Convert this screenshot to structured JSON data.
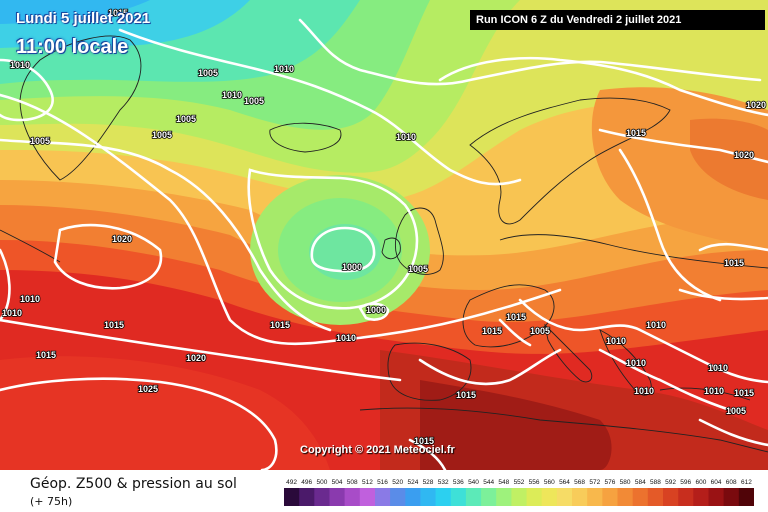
{
  "header": {
    "date": "Lundi 5 juillet 2021",
    "time": "11:00 locale",
    "run": "Run ICON 6 Z du Vendredi 2 juillet 2021"
  },
  "copyright": "Copyright © 2021 Meteociel.fr",
  "footer": {
    "title": "Géop. Z500 & pression au sol",
    "subtitle": "(+ 75h)"
  },
  "scale": {
    "values": [
      "492",
      "496",
      "500",
      "504",
      "508",
      "512",
      "516",
      "520",
      "524",
      "528",
      "532",
      "536",
      "540",
      "544",
      "548",
      "552",
      "556",
      "560",
      "564",
      "568",
      "572",
      "576",
      "580",
      "584",
      "588",
      "592",
      "596",
      "600",
      "604",
      "608",
      "612"
    ],
    "colors": [
      "#2a0a3a",
      "#4b1a6a",
      "#6a2a8f",
      "#8a3aae",
      "#a84cc8",
      "#c060dd",
      "#8a7ae6",
      "#5a8ce8",
      "#3a9ef0",
      "#30b8f2",
      "#2cd0f0",
      "#3ee0d8",
      "#5ceab8",
      "#7cf09a",
      "#9ef27c",
      "#c0f064",
      "#dcec58",
      "#eee65a",
      "#f6dc66",
      "#f8cc5a",
      "#f8b84c",
      "#f6a240",
      "#f28a36",
      "#ec722e",
      "#e45a28",
      "#d84222",
      "#c82e1e",
      "#b41e1a",
      "#9a1214",
      "#7a0a0e",
      "#500408"
    ]
  },
  "isobars": [
    {
      "v": "1015"
    },
    {
      "v": "1010"
    },
    {
      "v": "1005"
    },
    {
      "v": "1005"
    },
    {
      "v": "1005"
    },
    {
      "v": "1010"
    },
    {
      "v": "1010"
    },
    {
      "v": "1005"
    },
    {
      "v": "1005"
    },
    {
      "v": "1010"
    },
    {
      "v": "1020"
    },
    {
      "v": "1010"
    },
    {
      "v": "1010"
    },
    {
      "v": "1015"
    },
    {
      "v": "1015"
    },
    {
      "v": "1000"
    },
    {
      "v": "1005"
    },
    {
      "v": "1000"
    },
    {
      "v": "1010"
    },
    {
      "v": "1015"
    },
    {
      "v": "1020"
    },
    {
      "v": "1015"
    },
    {
      "v": "1025"
    },
    {
      "v": "1015"
    },
    {
      "v": "1015"
    },
    {
      "v": "1015"
    },
    {
      "v": "1015"
    },
    {
      "v": "1020"
    },
    {
      "v": "1020"
    },
    {
      "v": "1015"
    },
    {
      "v": "1005"
    },
    {
      "v": "1010"
    },
    {
      "v": "1010"
    },
    {
      "v": "1010"
    },
    {
      "v": "1010"
    },
    {
      "v": "1010"
    },
    {
      "v": "1005"
    },
    {
      "v": "1015"
    },
    {
      "v": "1010"
    }
  ]
}
